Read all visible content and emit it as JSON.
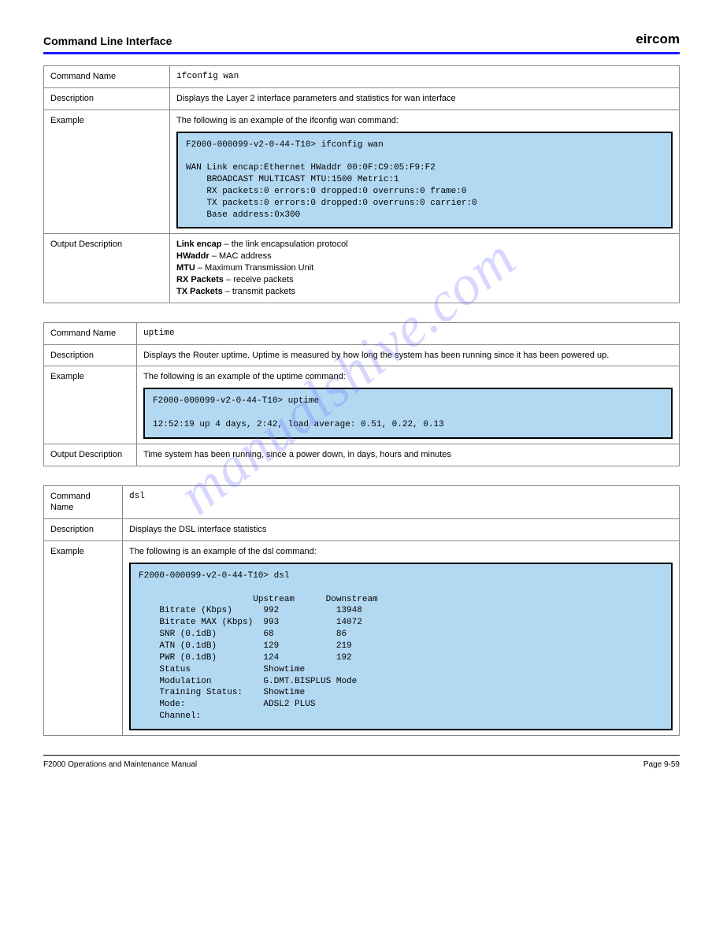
{
  "header": {
    "title": "Command Line Interface",
    "brand": "eircom"
  },
  "watermark": "manualshive.com",
  "footer": {
    "left": "F2000 Operations and Maintenance Manual",
    "right": "Page 9-59"
  },
  "tables": [
    {
      "class": "",
      "label_width": "160px",
      "rows": [
        {
          "label": "Command Name",
          "value_text": "ifconfig wan",
          "value_mono": true
        },
        {
          "label": "Description",
          "value_text": "Displays the Layer 2 interface parameters and statistics for wan interface"
        },
        {
          "label": "Example",
          "intro": "The following is an example of the ifconfig wan command:",
          "example": "F2000-000099-v2-0-44-T10> ifconfig wan\n\nWAN Link encap:Ethernet HWaddr 00:0F:C9:05:F9:F2\n    BROADCAST MULTICAST MTU:1500 Metric:1\n    RX packets:0 errors:0 dropped:0 overruns:0 frame:0\n    TX packets:0 errors:0 dropped:0 overruns:0 carrier:0\n    Base address:0x300 "
        },
        {
          "label": "Output Description",
          "value_html": "<b>Link encap</b> – the link encapsulation protocol<br><b>HWaddr</b> – MAC address<br><b>MTU</b> – Maximum Transmission Unit<br><b>RX Packets</b> – receive packets<br><b>TX Packets</b> – transmit packets"
        }
      ]
    },
    {
      "class": "t2",
      "rows": [
        {
          "label": "Command Name",
          "value_text": "uptime",
          "value_mono": true
        },
        {
          "label": "Description",
          "value_text": "Displays the Router uptime.  Uptime is measured by how long the system has been running since it has been powered up."
        },
        {
          "label": "Example",
          "intro": "The following is an example of the uptime command:",
          "example": "F2000-000099-v2-0-44-T10> uptime\n\n12:52:19 up 4 days, 2:42, load average: 0.51, 0.22, 0.13"
        },
        {
          "label": "Output Description",
          "value_text": "Time system has been running, since a power down, in days, hours and minutes"
        }
      ]
    },
    {
      "class": "t3",
      "rows": [
        {
          "label": "Command Name",
          "value_text": "dsl",
          "value_mono": true
        },
        {
          "label": "Description",
          "value_text": "Displays the DSL interface statistics"
        },
        {
          "label": "Example",
          "intro": "The following is an example of the dsl command:",
          "example": "F2000-000099-v2-0-44-T10> dsl\n\n                      Upstream      Downstream\n    Bitrate (Kbps)      992           13948\n    Bitrate MAX (Kbps)  993           14072\n    SNR (0.1dB)         68            86\n    ATN (0.1dB)         129           219\n    PWR (0.1dB)         124           192\n    Status              Showtime\n    Modulation          G.DMT.BISPLUS Mode\n    Training Status:    Showtime\n    Mode:               ADSL2 PLUS\n    Channel:            "
        }
      ]
    }
  ]
}
